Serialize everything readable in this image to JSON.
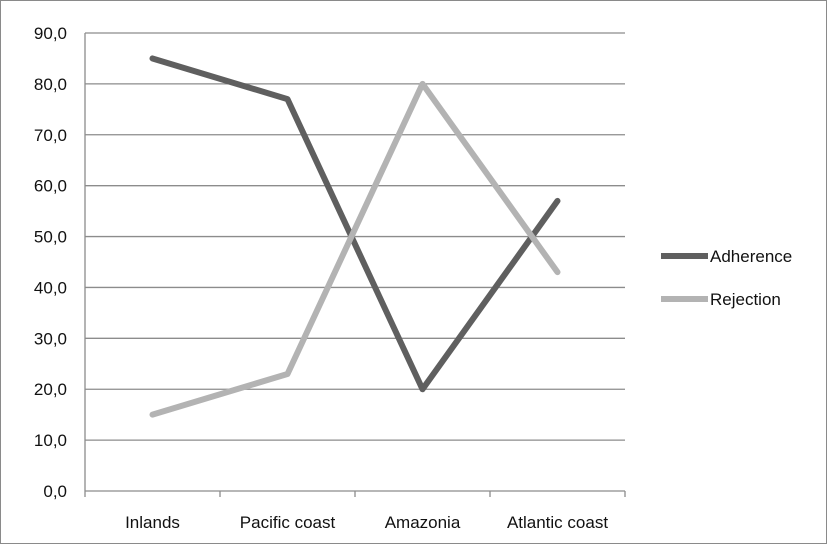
{
  "chart_data": {
    "type": "line",
    "categories": [
      "Inlands",
      "Pacific coast",
      "Amazonia",
      "Atlantic coast"
    ],
    "series": [
      {
        "name": "Adherence",
        "values": [
          85.0,
          77.0,
          20.0,
          57.0
        ],
        "color": "#5f5f5f"
      },
      {
        "name": "Rejection",
        "values": [
          15.0,
          23.0,
          80.0,
          43.0
        ],
        "color": "#b3b3b3"
      }
    ],
    "ylim": [
      0,
      90
    ],
    "yticks": [
      "0,0",
      "10,0",
      "20,0",
      "30,0",
      "40,0",
      "50,0",
      "60,0",
      "70,0",
      "80,0",
      "90,0"
    ],
    "grid": true,
    "legend": "right",
    "title": "",
    "xlabel": "",
    "ylabel": ""
  }
}
